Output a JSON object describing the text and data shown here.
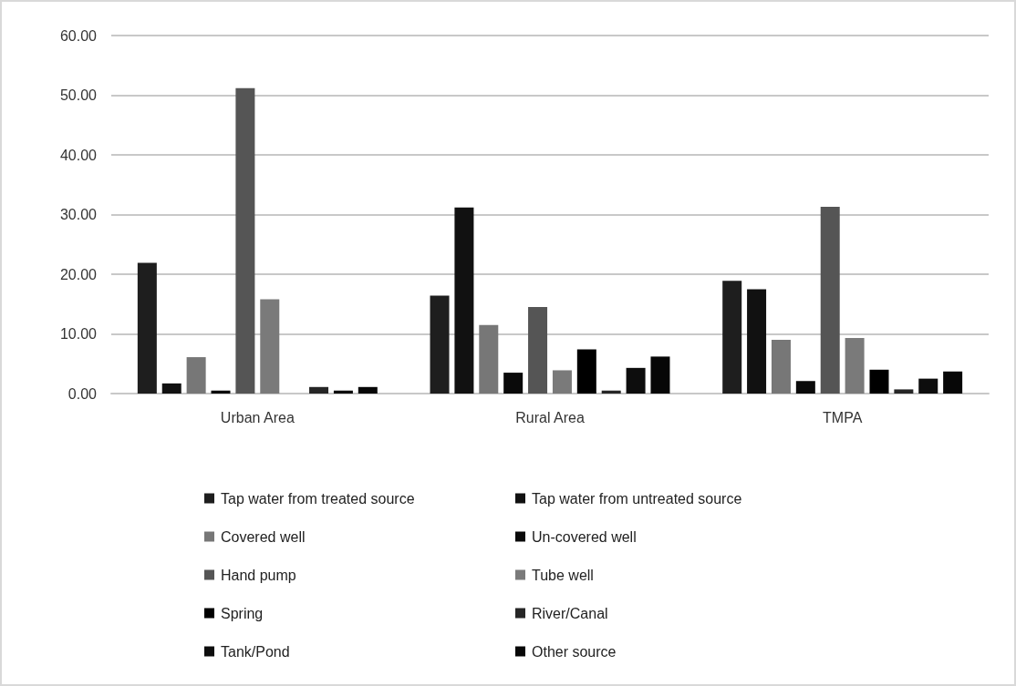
{
  "chart_data": {
    "type": "bar",
    "categories": [
      "Urban Area",
      "Rural Area",
      "TMPA"
    ],
    "series": [
      {
        "name": "Tap water from treated source",
        "color": "#1e1e1e",
        "values": [
          21.9,
          16.4,
          18.9
        ]
      },
      {
        "name": "Tap water from untreated source",
        "color": "#111111",
        "values": [
          1.7,
          31.2,
          17.5
        ]
      },
      {
        "name": "Covered well",
        "color": "#777777",
        "values": [
          6.1,
          11.5,
          9.0
        ]
      },
      {
        "name": "Un-covered well",
        "color": "#0a0a0a",
        "values": [
          0.5,
          3.5,
          2.1
        ]
      },
      {
        "name": "Hand pump",
        "color": "#555555",
        "values": [
          51.2,
          14.5,
          31.3
        ]
      },
      {
        "name": "Tube well",
        "color": "#7a7a7a",
        "values": [
          15.8,
          3.9,
          9.3
        ]
      },
      {
        "name": "Spring",
        "color": "#000000",
        "values": [
          0,
          7.4,
          4.0
        ]
      },
      {
        "name": "River/Canal",
        "color": "#262626",
        "values": [
          1.1,
          0.5,
          0.7
        ]
      },
      {
        "name": "Tank/Pond",
        "color": "#0d0d0d",
        "values": [
          0.5,
          4.3,
          2.5
        ]
      },
      {
        "name": "Other source",
        "color": "#070707",
        "values": [
          1.1,
          6.2,
          3.7
        ]
      }
    ],
    "ylim": [
      0,
      60
    ],
    "yticks": [
      {
        "value": 0,
        "label": "0.00"
      },
      {
        "value": 10,
        "label": "10.00"
      },
      {
        "value": 20,
        "label": "20.00"
      },
      {
        "value": 30,
        "label": "30.00"
      },
      {
        "value": 40,
        "label": "40.00"
      },
      {
        "value": 50,
        "label": "50.00"
      },
      {
        "value": 60,
        "label": "60.00"
      }
    ],
    "grid": "y",
    "legend": "bottom"
  }
}
